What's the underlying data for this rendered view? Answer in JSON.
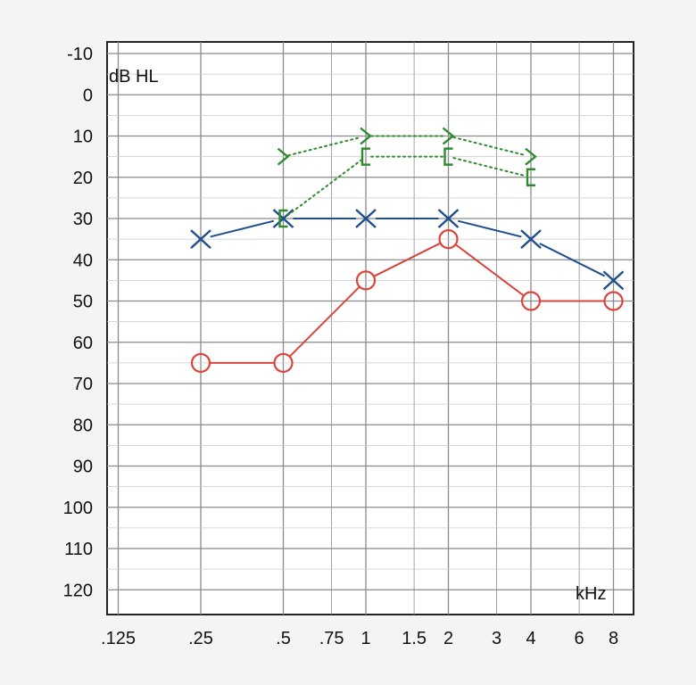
{
  "chart_data": {
    "type": "line",
    "ylabel": "dB HL",
    "xlabel": "kHz",
    "x_ticks": [
      ".125",
      ".25",
      ".5",
      ".75",
      "1",
      "1.5",
      "2",
      "3",
      "4",
      "6",
      "8"
    ],
    "x_values": [
      0.125,
      0.25,
      0.5,
      0.75,
      1,
      1.5,
      2,
      3,
      4,
      6,
      8
    ],
    "x_scale": "log2",
    "y_ticks": [
      "-10",
      "0",
      "10",
      "20",
      "30",
      "40",
      "50",
      "60",
      "70",
      "80",
      "90",
      "100",
      "110",
      "120"
    ],
    "ylim": [
      -10,
      120
    ],
    "y_inverted": true,
    "grid": true,
    "series": [
      {
        "marker": "circle",
        "color": "#d9453a",
        "line": "solid",
        "x": [
          0.25,
          0.5,
          1,
          2,
          4,
          8
        ],
        "y": [
          65,
          65,
          45,
          35,
          50,
          50
        ]
      },
      {
        "marker": "x",
        "color": "#1f4e8c",
        "line": "solid",
        "x": [
          0.25,
          0.5,
          1,
          2,
          4,
          8
        ],
        "y": [
          35,
          30,
          30,
          30,
          35,
          45
        ]
      },
      {
        "marker": "right-angle-bracket",
        "color": "#2e8b2e",
        "line": "dotted",
        "x": [
          0.5,
          1,
          2,
          4
        ],
        "y": [
          15,
          10,
          10,
          15
        ]
      },
      {
        "marker": "left-square-bracket",
        "color": "#2e8b2e",
        "line": "dotted",
        "x": [
          0.5,
          1,
          2,
          4
        ],
        "y": [
          30,
          15,
          15,
          20
        ]
      }
    ]
  }
}
